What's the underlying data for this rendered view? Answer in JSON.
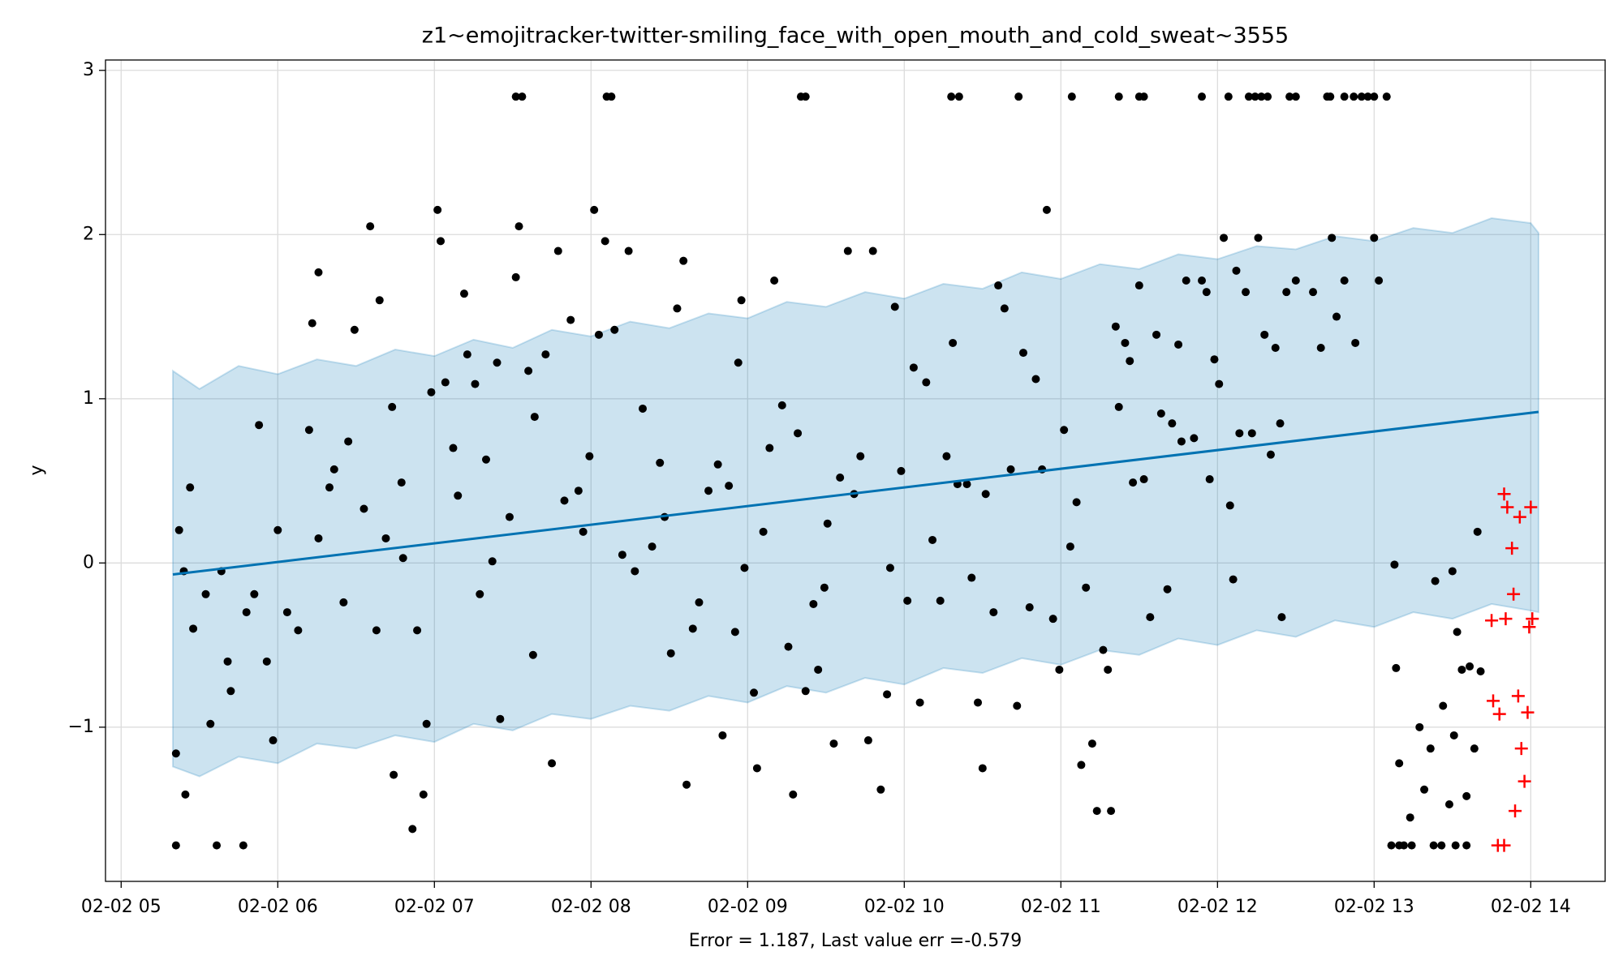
{
  "chart_data": {
    "type": "scatter",
    "title": "z1~emojitracker-twitter-smiling_face_with_open_mouth_and_cold_sweat~3555",
    "x_label": "Error = 1.187, Last value err =-0.579",
    "y_label": "y",
    "xlim": [
      4.9,
      14.475
    ],
    "ylim": [
      -1.939,
      3.063
    ],
    "xticks": [
      {
        "value": 5,
        "label": "02-02 05"
      },
      {
        "value": 6,
        "label": "02-02 06"
      },
      {
        "value": 7,
        "label": "02-02 07"
      },
      {
        "value": 8,
        "label": "02-02 08"
      },
      {
        "value": 9,
        "label": "02-02 09"
      },
      {
        "value": 10,
        "label": "02-02 10"
      },
      {
        "value": 11,
        "label": "02-02 11"
      },
      {
        "value": 12,
        "label": "02-02 12"
      },
      {
        "value": 13,
        "label": "02-02 13"
      },
      {
        "value": 14,
        "label": "02-02 14"
      }
    ],
    "yticks": [
      {
        "value": -1,
        "label": "−1"
      },
      0,
      1,
      2,
      3
    ],
    "grid": true,
    "series": [
      {
        "type": "band",
        "color": "#0072b2",
        "x": [
          5.33,
          5.5,
          5.75,
          6.0,
          6.25,
          6.5,
          6.75,
          7.0,
          7.25,
          7.5,
          7.75,
          8.0,
          8.25,
          8.5,
          8.75,
          9.0,
          9.25,
          9.5,
          9.75,
          10.0,
          10.25,
          10.5,
          10.75,
          11.0,
          11.25,
          11.5,
          11.75,
          12.0,
          12.25,
          12.5,
          12.75,
          13.0,
          13.25,
          13.5,
          13.75,
          14.0,
          14.05
        ],
        "upper": [
          1.17,
          1.06,
          1.2,
          1.15,
          1.24,
          1.2,
          1.3,
          1.26,
          1.36,
          1.31,
          1.42,
          1.38,
          1.47,
          1.43,
          1.52,
          1.49,
          1.59,
          1.56,
          1.65,
          1.61,
          1.7,
          1.67,
          1.77,
          1.73,
          1.82,
          1.79,
          1.88,
          1.85,
          1.93,
          1.91,
          1.99,
          1.96,
          2.04,
          2.01,
          2.1,
          2.07,
          2.01
        ],
        "lower": [
          -1.24,
          -1.3,
          -1.18,
          -1.22,
          -1.1,
          -1.13,
          -1.05,
          -1.09,
          -0.98,
          -1.02,
          -0.92,
          -0.95,
          -0.87,
          -0.9,
          -0.81,
          -0.85,
          -0.75,
          -0.79,
          -0.7,
          -0.74,
          -0.64,
          -0.67,
          -0.58,
          -0.62,
          -0.53,
          -0.56,
          -0.46,
          -0.5,
          -0.41,
          -0.45,
          -0.35,
          -0.39,
          -0.3,
          -0.34,
          -0.25,
          -0.29,
          -0.3
        ]
      },
      {
        "type": "scatter",
        "color": "#000000",
        "x": [
          5.35,
          5.37,
          5.4,
          5.44,
          5.41,
          5.46,
          5.54,
          5.57,
          5.64,
          5.68,
          5.7,
          5.8,
          5.85,
          5.88,
          5.93,
          5.97,
          6.0,
          6.06,
          6.13,
          6.2,
          6.22,
          6.26,
          6.26,
          6.33,
          6.36,
          6.42,
          6.45,
          6.49,
          6.55,
          6.59,
          6.63,
          6.65,
          6.69,
          6.73,
          6.74,
          6.79,
          6.8,
          6.86,
          6.89,
          6.93,
          6.95,
          6.98,
          7.02,
          7.04,
          7.07,
          7.12,
          7.15,
          7.19,
          7.21,
          7.26,
          7.29,
          7.33,
          7.37,
          7.4,
          7.42,
          7.48,
          7.52,
          7.54,
          7.6,
          7.63,
          7.64,
          7.71,
          7.75,
          7.79,
          7.83,
          7.87,
          7.92,
          7.95,
          7.99,
          8.02,
          8.05,
          8.09,
          8.15,
          8.2,
          8.24,
          8.28,
          8.33,
          8.39,
          8.44,
          8.47,
          8.51,
          8.55,
          8.59,
          8.61,
          8.65,
          8.69,
          8.75,
          8.81,
          8.84,
          8.88,
          8.92,
          8.94,
          8.96,
          8.98,
          9.04,
          9.06,
          9.1,
          9.14,
          9.17,
          9.22,
          9.26,
          9.29,
          9.32,
          9.37,
          9.42,
          9.45,
          9.49,
          9.51,
          9.55,
          9.59,
          9.64,
          9.68,
          9.72,
          9.77,
          9.8,
          9.85,
          9.89,
          9.91,
          9.94,
          9.98,
          10.02,
          10.06,
          10.1,
          10.14,
          10.18,
          10.23,
          10.27,
          10.31,
          10.34,
          10.4,
          10.43,
          10.47,
          10.5,
          10.52,
          10.57,
          10.6,
          10.64,
          10.68,
          10.72,
          10.76,
          10.8,
          10.84,
          10.88,
          10.91,
          10.95,
          10.99,
          11.02,
          11.06,
          11.1,
          11.13,
          11.16,
          11.2,
          11.23,
          11.27,
          11.3,
          11.32,
          11.35,
          11.37,
          11.41,
          11.44,
          11.46,
          11.5,
          11.53,
          11.57,
          11.61,
          11.64,
          11.68,
          11.71,
          11.75,
          11.77,
          11.8,
          11.85,
          11.9,
          11.93,
          11.95,
          11.98,
          12.01,
          12.04,
          12.08,
          12.1,
          12.12,
          12.14,
          12.18,
          12.22,
          12.26,
          12.3,
          12.34,
          12.37,
          12.4,
          12.41,
          12.44,
          12.5,
          12.61,
          12.66,
          12.73,
          12.76,
          12.81,
          12.88,
          13.0,
          13.03,
          13.13,
          13.14,
          13.16,
          13.23,
          13.29,
          13.32,
          13.36,
          13.39,
          13.44,
          13.48,
          13.51,
          13.53,
          13.56,
          13.59,
          13.61,
          13.64,
          13.66,
          13.68,
          13.5,
          7.52,
          7.56,
          8.1,
          8.13,
          9.34,
          9.37,
          10.3,
          10.35,
          10.73,
          11.07,
          11.37,
          11.5,
          11.53,
          11.9,
          12.07,
          12.2,
          12.24,
          12.28,
          12.32,
          12.46,
          12.5,
          12.7,
          12.72,
          12.81,
          12.87,
          12.92,
          12.96,
          13.0,
          13.08,
          5.35,
          5.61,
          5.78,
          13.11,
          13.16,
          13.19,
          13.24,
          13.38,
          13.43,
          13.52,
          13.59
        ],
        "values": [
          -1.16,
          0.2,
          -0.05,
          0.46,
          -1.41,
          -0.4,
          -0.19,
          -0.98,
          -0.05,
          -0.6,
          -0.78,
          -0.3,
          -0.19,
          0.84,
          -0.6,
          -1.08,
          0.2,
          -0.3,
          -0.41,
          0.81,
          1.46,
          1.77,
          0.15,
          0.46,
          0.57,
          -0.24,
          0.74,
          1.42,
          0.33,
          2.05,
          -0.41,
          1.6,
          0.15,
          0.95,
          -1.29,
          0.49,
          0.03,
          -1.62,
          -0.41,
          -1.41,
          -0.98,
          1.04,
          2.15,
          1.96,
          1.1,
          0.7,
          0.41,
          1.64,
          1.27,
          1.09,
          -0.19,
          0.63,
          0.01,
          1.22,
          -0.95,
          0.28,
          1.74,
          2.05,
          1.17,
          -0.56,
          0.89,
          1.27,
          -1.22,
          1.9,
          0.38,
          1.48,
          0.44,
          0.19,
          0.65,
          2.15,
          1.39,
          1.96,
          1.42,
          0.05,
          1.9,
          -0.05,
          0.94,
          0.1,
          0.61,
          0.28,
          -0.55,
          1.55,
          1.84,
          -1.35,
          -0.4,
          -0.24,
          0.44,
          0.6,
          -1.05,
          0.47,
          -0.42,
          1.22,
          1.6,
          -0.03,
          -0.79,
          -1.25,
          0.19,
          0.7,
          1.72,
          0.96,
          -0.51,
          -1.41,
          0.79,
          -0.78,
          -0.25,
          -0.65,
          -0.15,
          0.24,
          -1.1,
          0.52,
          1.9,
          0.42,
          0.65,
          -1.08,
          1.9,
          -1.38,
          -0.8,
          -0.03,
          1.56,
          0.56,
          -0.23,
          1.19,
          -0.85,
          1.1,
          0.14,
          -0.23,
          0.65,
          1.34,
          0.48,
          0.48,
          -0.09,
          -0.85,
          -1.25,
          0.42,
          -0.3,
          1.69,
          1.55,
          0.57,
          -0.87,
          1.28,
          -0.27,
          1.12,
          0.57,
          2.15,
          -0.34,
          -0.65,
          0.81,
          0.1,
          0.37,
          -1.23,
          -0.15,
          -1.1,
          -1.51,
          -0.53,
          -0.65,
          -1.51,
          1.44,
          0.95,
          1.34,
          1.23,
          0.49,
          1.69,
          0.51,
          -0.33,
          1.39,
          0.91,
          -0.16,
          0.85,
          1.33,
          0.74,
          1.72,
          0.76,
          1.72,
          1.65,
          0.51,
          1.24,
          1.09,
          1.98,
          0.35,
          -0.1,
          1.78,
          0.79,
          1.65,
          0.79,
          1.98,
          1.39,
          0.66,
          1.31,
          0.85,
          -0.33,
          1.65,
          1.72,
          1.65,
          1.31,
          1.98,
          1.5,
          1.72,
          1.34,
          1.98,
          1.72,
          -0.01,
          -0.64,
          -1.22,
          -1.55,
          -1.0,
          -1.38,
          -1.13,
          -0.11,
          -0.87,
          -1.47,
          -1.05,
          -0.42,
          -0.65,
          -1.42,
          -0.63,
          -1.13,
          0.19,
          -0.66,
          -0.05,
          2.84,
          2.84,
          2.84,
          2.84,
          2.84,
          2.84,
          2.84,
          2.84,
          2.84,
          2.84,
          2.84,
          2.84,
          2.84,
          2.84,
          2.84,
          2.84,
          2.84,
          2.84,
          2.84,
          2.84,
          2.84,
          2.84,
          2.84,
          2.84,
          2.84,
          2.84,
          2.84,
          2.84,
          2.84,
          -1.72,
          -1.72,
          -1.72,
          -1.72,
          -1.72,
          -1.72,
          -1.72,
          -1.72,
          -1.72,
          -1.72,
          -1.72
        ]
      },
      {
        "type": "line",
        "color": "#0072b2",
        "x": [
          5.33,
          14.05
        ],
        "values": [
          -0.07,
          0.92
        ]
      },
      {
        "type": "cross",
        "color": "#ff0000",
        "x": [
          13.75,
          13.76,
          13.79,
          13.8,
          13.83,
          13.83,
          13.84,
          13.85,
          13.88,
          13.89,
          13.9,
          13.92,
          13.93,
          13.94,
          13.96,
          13.98,
          13.99,
          14.0,
          14.01
        ],
        "values": [
          -0.35,
          -0.84,
          -1.72,
          -0.92,
          -1.72,
          0.42,
          -0.34,
          0.34,
          0.09,
          -0.19,
          -1.51,
          -0.81,
          0.28,
          -1.13,
          -1.33,
          -0.91,
          -0.39,
          0.34,
          -0.34
        ]
      }
    ]
  }
}
